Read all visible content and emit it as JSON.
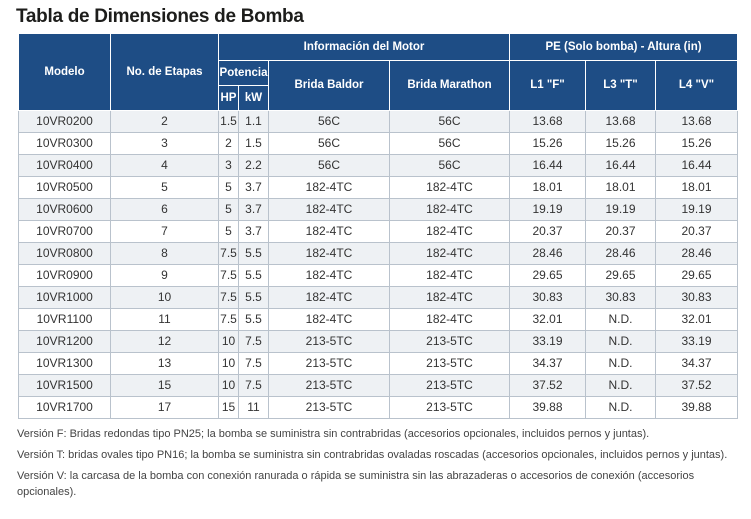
{
  "title": "Tabla de Dimensiones de Bomba",
  "headers": {
    "modelo": "Modelo",
    "etapas": "No. de Etapas",
    "motor_group": "Información del Motor",
    "potencia": "Potencia",
    "hp": "HP",
    "kw": "kW",
    "baldor": "Brida Baldor",
    "marathon": "Brida Marathon",
    "pe_group": "PE (Solo bomba) - Altura (in)",
    "l1": "L1 \"F\"",
    "l3": "L3 \"T\"",
    "l4": "L4 \"V\""
  },
  "rows": [
    [
      "10VR0200",
      "2",
      "1.5",
      "1.1",
      "56C",
      "56C",
      "13.68",
      "13.68",
      "13.68"
    ],
    [
      "10VR0300",
      "3",
      "2",
      "1.5",
      "56C",
      "56C",
      "15.26",
      "15.26",
      "15.26"
    ],
    [
      "10VR0400",
      "4",
      "3",
      "2.2",
      "56C",
      "56C",
      "16.44",
      "16.44",
      "16.44"
    ],
    [
      "10VR0500",
      "5",
      "5",
      "3.7",
      "182-4TC",
      "182-4TC",
      "18.01",
      "18.01",
      "18.01"
    ],
    [
      "10VR0600",
      "6",
      "5",
      "3.7",
      "182-4TC",
      "182-4TC",
      "19.19",
      "19.19",
      "19.19"
    ],
    [
      "10VR0700",
      "7",
      "5",
      "3.7",
      "182-4TC",
      "182-4TC",
      "20.37",
      "20.37",
      "20.37"
    ],
    [
      "10VR0800",
      "8",
      "7.5",
      "5.5",
      "182-4TC",
      "182-4TC",
      "28.46",
      "28.46",
      "28.46"
    ],
    [
      "10VR0900",
      "9",
      "7.5",
      "5.5",
      "182-4TC",
      "182-4TC",
      "29.65",
      "29.65",
      "29.65"
    ],
    [
      "10VR1000",
      "10",
      "7.5",
      "5.5",
      "182-4TC",
      "182-4TC",
      "30.83",
      "30.83",
      "30.83"
    ],
    [
      "10VR1100",
      "11",
      "7.5",
      "5.5",
      "182-4TC",
      "182-4TC",
      "32.01",
      "N.D.",
      "32.01"
    ],
    [
      "10VR1200",
      "12",
      "10",
      "7.5",
      "213-5TC",
      "213-5TC",
      "33.19",
      "N.D.",
      "33.19"
    ],
    [
      "10VR1300",
      "13",
      "10",
      "7.5",
      "213-5TC",
      "213-5TC",
      "34.37",
      "N.D.",
      "34.37"
    ],
    [
      "10VR1500",
      "15",
      "10",
      "7.5",
      "213-5TC",
      "213-5TC",
      "37.52",
      "N.D.",
      "37.52"
    ],
    [
      "10VR1700",
      "17",
      "15",
      "11",
      "213-5TC",
      "213-5TC",
      "39.88",
      "N.D.",
      "39.88"
    ]
  ],
  "notes": [
    "Versión F: Bridas redondas tipo PN25; la bomba se suministra sin contrabridas (accesorios opcionales, incluidos pernos y juntas).",
    "Versión T: bridas ovales tipo PN16; la bomba se suministra sin contrabridas ovaladas roscadas (accesorios opcionales, incluidos pernos y juntas).",
    "Versión V: la carcasa de la bomba con conexión ranurada o rápida se suministra sin las abrazaderas o accesorios de conexión (accesorios opcionales)."
  ]
}
